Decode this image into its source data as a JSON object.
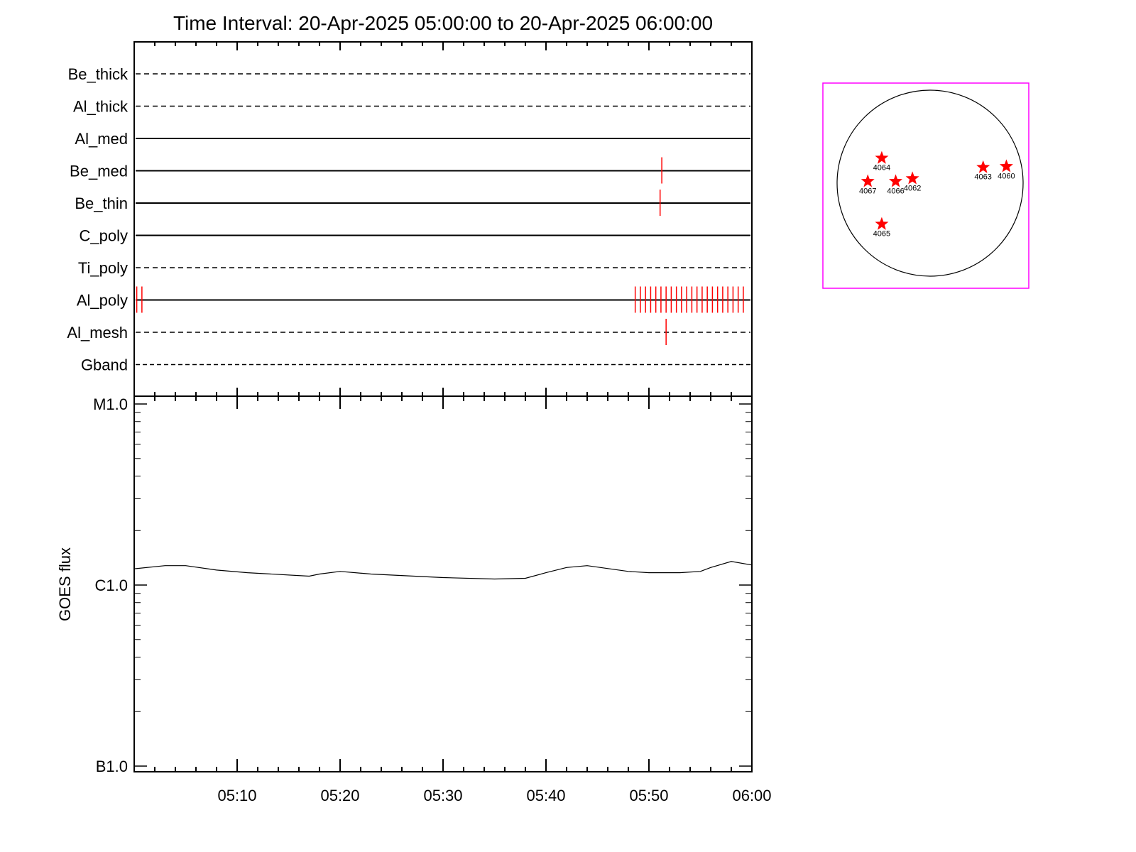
{
  "chart_data": [
    {
      "type": "event-timeline",
      "title": "Time Interval: 20-Apr-2025 05:00:00 to 20-Apr-2025 06:00:00",
      "xrange": [
        "05:00",
        "06:00"
      ],
      "channels": [
        {
          "name": "Be_thick",
          "style": "dashed",
          "events": []
        },
        {
          "name": "Al_thick",
          "style": "dashed",
          "events": []
        },
        {
          "name": "Al_med",
          "style": "solid",
          "events": []
        },
        {
          "name": "Be_med",
          "style": "solid",
          "events": [
            "05:51:15"
          ]
        },
        {
          "name": "Be_thin",
          "style": "solid",
          "events": [
            "05:51:05"
          ]
        },
        {
          "name": "C_poly",
          "style": "solid",
          "events": []
        },
        {
          "name": "Ti_poly",
          "style": "dashed",
          "events": []
        },
        {
          "name": "Al_poly",
          "style": "solid",
          "events": [
            "05:00:15",
            "05:00:45",
            "05:48:40",
            "05:49:10",
            "05:49:40",
            "05:50:10",
            "05:50:40",
            "05:51:10",
            "05:51:40",
            "05:52:10",
            "05:52:40",
            "05:53:10",
            "05:53:40",
            "05:54:10",
            "05:54:40",
            "05:55:10",
            "05:55:40",
            "05:56:10",
            "05:56:40",
            "05:57:10",
            "05:57:40",
            "05:58:10",
            "05:58:40",
            "05:59:10"
          ]
        },
        {
          "name": "Al_mesh",
          "style": "dashed",
          "events": [
            "05:51:40"
          ]
        },
        {
          "name": "Gband",
          "style": "dashed",
          "events": []
        }
      ],
      "event_color": "#ff0000"
    },
    {
      "type": "line",
      "ylabel": "GOES flux",
      "yscale": "log",
      "ylim": [
        1e-07,
        1e-05
      ],
      "ytick_labels": [
        "B1.0",
        "C1.0",
        "M1.0"
      ],
      "xtick_labels": [
        "05:10",
        "05:20",
        "05:30",
        "05:40",
        "05:50",
        "06:00"
      ],
      "x_minutes": [
        0,
        3,
        5,
        8,
        11,
        17,
        18,
        20,
        23,
        30,
        35,
        38,
        40,
        42,
        44,
        48,
        50,
        53,
        55,
        56,
        58,
        60
      ],
      "y": [
        1.23e-06,
        1.28e-06,
        1.28e-06,
        1.21e-06,
        1.17e-06,
        1.12e-06,
        1.15e-06,
        1.19e-06,
        1.15e-06,
        1.1e-06,
        1.08e-06,
        1.09e-06,
        1.17e-06,
        1.25e-06,
        1.28e-06,
        1.19e-06,
        1.17e-06,
        1.17e-06,
        1.19e-06,
        1.25e-06,
        1.35e-06,
        1.29e-06
      ],
      "color": "#000000"
    },
    {
      "type": "scatter",
      "description_of_marks": "active regions on solar disk",
      "regions": [
        {
          "label": "4064",
          "pos": [
            -0.52,
            0.27
          ]
        },
        {
          "label": "4067",
          "pos": [
            -0.67,
            0.02
          ]
        },
        {
          "label": "4066",
          "pos": [
            -0.37,
            0.02
          ]
        },
        {
          "label": "4062",
          "pos": [
            -0.19,
            0.05
          ]
        },
        {
          "label": "4063",
          "pos": [
            0.57,
            0.17
          ]
        },
        {
          "label": "4060",
          "pos": [
            0.82,
            0.18
          ]
        },
        {
          "label": "4065",
          "pos": [
            -0.52,
            -0.44
          ]
        }
      ],
      "marker_color": "#ff0000",
      "frame_color": "#ff00ff"
    }
  ]
}
